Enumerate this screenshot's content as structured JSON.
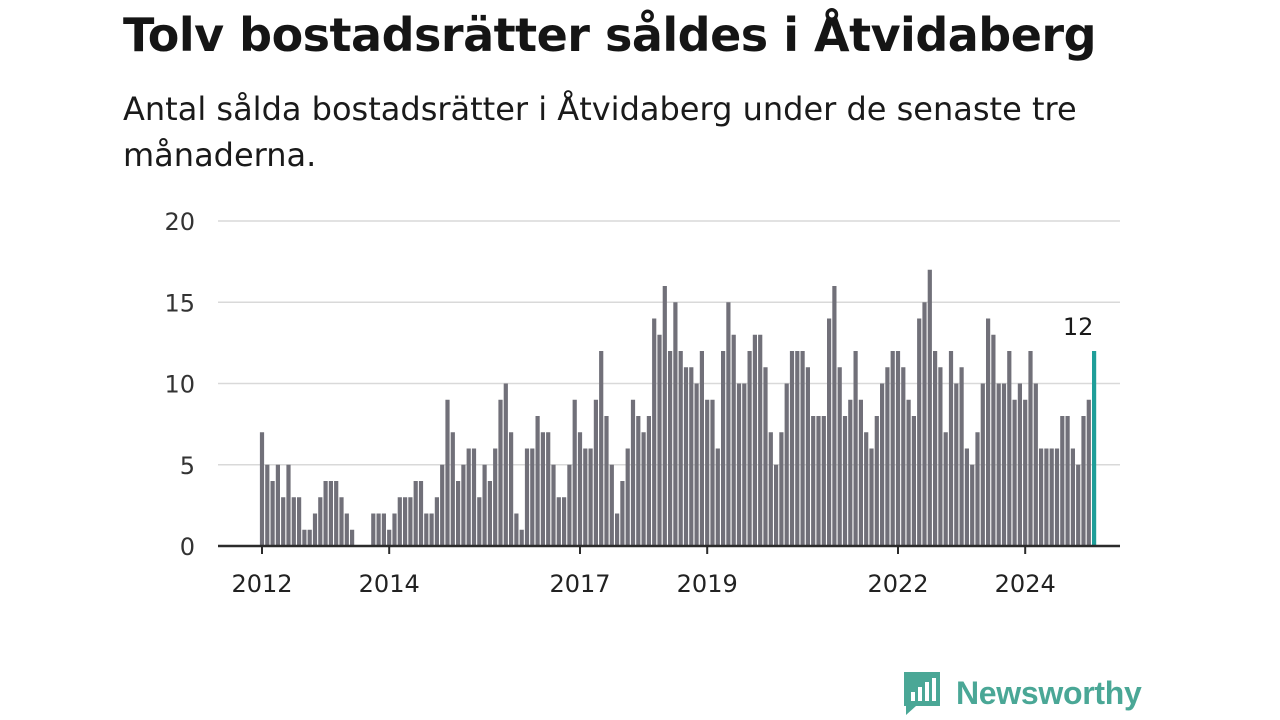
{
  "header": {
    "title": "Tolv bostadsrätter såldes i Åtvidaberg",
    "subtitle": "Antal sålda bostadsrätter i Åtvidaberg under de senaste tre månaderna."
  },
  "brand": {
    "name": "Newsworthy",
    "color": "#4aa796"
  },
  "chart_data": {
    "type": "bar",
    "title": "Tolv bostadsrätter såldes i Åtvidaberg",
    "subtitle": "Antal sålda bostadsrätter i Åtvidaberg under de senaste tre månaderna.",
    "xlabel": "",
    "ylabel": "",
    "ylim": [
      0,
      20
    ],
    "yticks": [
      0,
      5,
      10,
      15,
      20
    ],
    "xtick_labels": [
      "2012",
      "2014",
      "2017",
      "2019",
      "2022",
      "2024"
    ],
    "grid": true,
    "bar_color": "#717079",
    "highlight_color": "#1f9e99",
    "highlight_label": "12",
    "series": [
      {
        "values": [
          7,
          5,
          4,
          5,
          3,
          5,
          3,
          3,
          1,
          1,
          2,
          3,
          4,
          4,
          4,
          3,
          2,
          1,
          0,
          0,
          0,
          2,
          2,
          2,
          1,
          2,
          3,
          3,
          3,
          4,
          4,
          2,
          2,
          3,
          5,
          9,
          7,
          4,
          5,
          6,
          6,
          3,
          5,
          4,
          6,
          9,
          10,
          7,
          2,
          1,
          6,
          6,
          8,
          7,
          7,
          5,
          3,
          3,
          5,
          9,
          7,
          6,
          6,
          9,
          12,
          8,
          5,
          2,
          4,
          6,
          9,
          8,
          7,
          8,
          14,
          13,
          16,
          12,
          15,
          12,
          11,
          11,
          10,
          12,
          9,
          9,
          6,
          12,
          15,
          13,
          10,
          10,
          12,
          13,
          13,
          11,
          7,
          5,
          7,
          10,
          12,
          12,
          12,
          11,
          8,
          8,
          8,
          14,
          16,
          11,
          8,
          9,
          12,
          9,
          7,
          6,
          8,
          10,
          11,
          12,
          12,
          11,
          9,
          8,
          14,
          15,
          17,
          12,
          11,
          7,
          12,
          10,
          11,
          6,
          5,
          7,
          10,
          14,
          13,
          10,
          10,
          12,
          9,
          10,
          9,
          12,
          10,
          6,
          6,
          6,
          6,
          8,
          8,
          6,
          5,
          8,
          9,
          12
        ]
      }
    ]
  }
}
